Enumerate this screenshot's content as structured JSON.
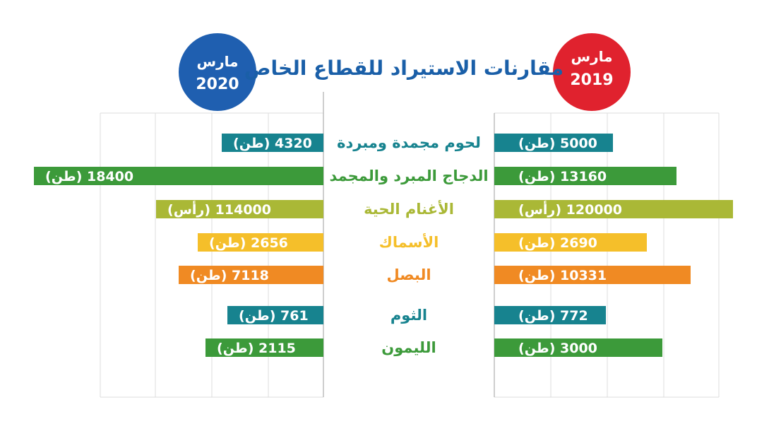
{
  "title": "مقارنات الاستيراد للقطاع الخاص",
  "title_color": "#1a5fa8",
  "badges": {
    "left": {
      "line1": "مارس",
      "line2": "2020",
      "color": "#1f5fb0"
    },
    "right": {
      "line1": "مارس",
      "line2": "2019",
      "color": "#e0222e"
    }
  },
  "chart_data": {
    "type": "bar",
    "orientation": "horizontal-mirrored",
    "title": "مقارنات الاستيراد للقطاع الخاص",
    "categories": [
      "لحوم مجمدة ومبردة",
      "الدجاج المبرد والمجمد",
      "الأغنام الحية",
      "الأسماك",
      "البصل",
      "الثوم",
      "الليمون"
    ],
    "category_colors": [
      "#17838f",
      "#3c9a3a",
      "#aab836",
      "#f5bf2a",
      "#f08a23",
      "#17838f",
      "#3c9a3a"
    ],
    "series": [
      {
        "name": "مارس 2020",
        "values": [
          4320,
          18400,
          114000,
          2656,
          7118,
          761,
          2115
        ],
        "units": [
          "(طن)",
          "(طن)",
          "(رأس)",
          "(طن)",
          "(طن)",
          "(طن)",
          "(طن)"
        ]
      },
      {
        "name": "مارس 2019",
        "values": [
          5000,
          13160,
          120000,
          2690,
          10331,
          772,
          3000
        ],
        "units": [
          "(طن)",
          "(طن)",
          "(رأس)",
          "(طن)",
          "(طن)",
          "(طن)",
          "(طن)"
        ]
      }
    ],
    "grid": true
  }
}
